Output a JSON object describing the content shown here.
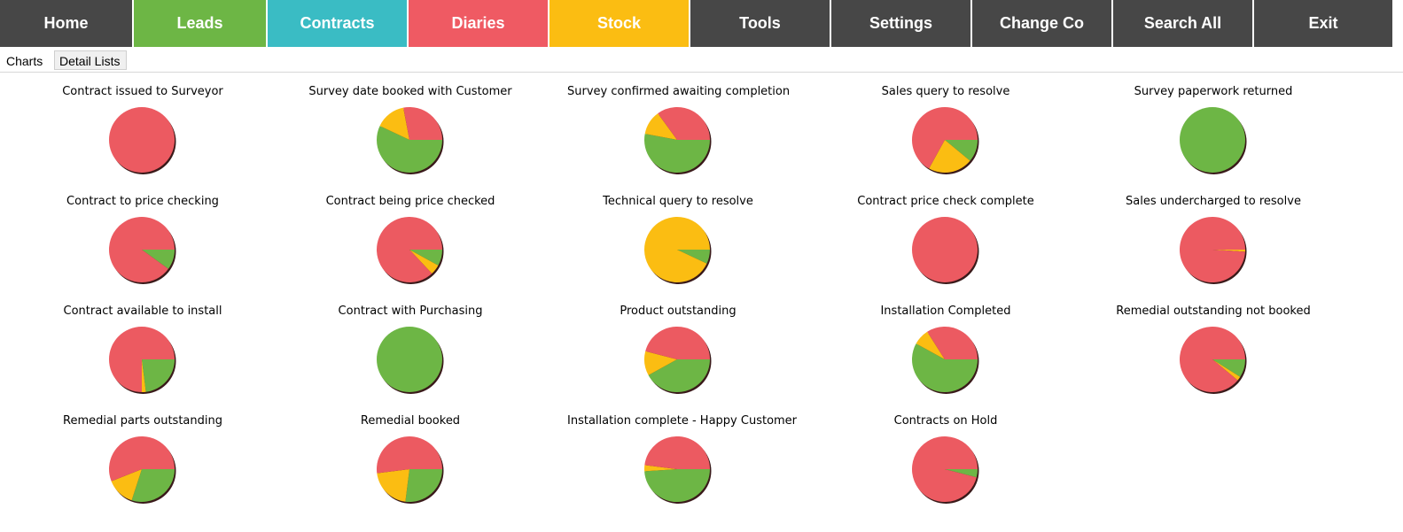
{
  "nav": [
    {
      "label": "Home",
      "color": "#474747"
    },
    {
      "label": "Leads",
      "color": "#6db645"
    },
    {
      "label": "Contracts",
      "color": "#3abcc4"
    },
    {
      "label": "Diaries",
      "color": "#ef5a63"
    },
    {
      "label": "Stock",
      "color": "#fbbd12"
    },
    {
      "label": "Tools",
      "color": "#474747"
    },
    {
      "label": "Settings",
      "color": "#474747"
    },
    {
      "label": "Change Co",
      "color": "#474747"
    },
    {
      "label": "Search All",
      "color": "#474747"
    },
    {
      "label": "Exit",
      "color": "#474747"
    }
  ],
  "tabs": {
    "charts": "Charts",
    "detail_lists": "Detail Lists"
  },
  "colors": {
    "green": "#6db645",
    "amber": "#fbbd12",
    "red": "#ec5a61",
    "shadow": "#3a1a1a"
  },
  "chart_data": [
    {
      "type": "pie",
      "title": "Contract issued to Surveyor",
      "slices": [
        {
          "color": "red",
          "value": 100
        }
      ]
    },
    {
      "type": "pie",
      "title": "Survey date booked with Customer",
      "slices": [
        {
          "color": "green",
          "value": 57
        },
        {
          "color": "amber",
          "value": 15
        },
        {
          "color": "red",
          "value": 28
        }
      ]
    },
    {
      "type": "pie",
      "title": "Survey confirmed awaiting completion",
      "slices": [
        {
          "color": "green",
          "value": 53
        },
        {
          "color": "amber",
          "value": 12
        },
        {
          "color": "red",
          "value": 35
        }
      ]
    },
    {
      "type": "pie",
      "title": "Sales query to resolve",
      "slices": [
        {
          "color": "green",
          "value": 11
        },
        {
          "color": "amber",
          "value": 22
        },
        {
          "color": "red",
          "value": 67
        }
      ]
    },
    {
      "type": "pie",
      "title": "Survey paperwork returned",
      "slices": [
        {
          "color": "green",
          "value": 100
        }
      ]
    },
    {
      "type": "pie",
      "title": "Contract to price checking",
      "slices": [
        {
          "color": "green",
          "value": 10
        },
        {
          "color": "red",
          "value": 90
        }
      ]
    },
    {
      "type": "pie",
      "title": "Contract being price checked",
      "slices": [
        {
          "color": "green",
          "value": 8
        },
        {
          "color": "amber",
          "value": 5
        },
        {
          "color": "red",
          "value": 87
        }
      ]
    },
    {
      "type": "pie",
      "title": "Technical query to resolve",
      "slices": [
        {
          "color": "green",
          "value": 7
        },
        {
          "color": "amber",
          "value": 93
        }
      ]
    },
    {
      "type": "pie",
      "title": "Contract price check complete",
      "slices": [
        {
          "color": "red",
          "value": 100
        }
      ]
    },
    {
      "type": "pie",
      "title": "Sales undercharged to resolve",
      "slices": [
        {
          "color": "amber",
          "value": 1
        },
        {
          "color": "red",
          "value": 99
        }
      ]
    },
    {
      "type": "pie",
      "title": "Contract available to install",
      "slices": [
        {
          "color": "green",
          "value": 23
        },
        {
          "color": "amber",
          "value": 2
        },
        {
          "color": "red",
          "value": 75
        }
      ]
    },
    {
      "type": "pie",
      "title": "Contract with Purchasing",
      "slices": [
        {
          "color": "green",
          "value": 100
        }
      ]
    },
    {
      "type": "pie",
      "title": "Product outstanding",
      "slices": [
        {
          "color": "green",
          "value": 42
        },
        {
          "color": "amber",
          "value": 12
        },
        {
          "color": "red",
          "value": 46
        }
      ]
    },
    {
      "type": "pie",
      "title": "Installation Completed",
      "slices": [
        {
          "color": "green",
          "value": 58
        },
        {
          "color": "amber",
          "value": 8
        },
        {
          "color": "red",
          "value": 34
        }
      ]
    },
    {
      "type": "pie",
      "title": "Remedial outstanding not booked",
      "slices": [
        {
          "color": "green",
          "value": 9
        },
        {
          "color": "amber",
          "value": 2
        },
        {
          "color": "red",
          "value": 89
        }
      ]
    },
    {
      "type": "pie",
      "title": "Remedial parts outstanding",
      "slices": [
        {
          "color": "green",
          "value": 30
        },
        {
          "color": "amber",
          "value": 14
        },
        {
          "color": "red",
          "value": 56
        }
      ]
    },
    {
      "type": "pie",
      "title": "Remedial booked",
      "slices": [
        {
          "color": "green",
          "value": 27
        },
        {
          "color": "amber",
          "value": 21
        },
        {
          "color": "red",
          "value": 52
        }
      ]
    },
    {
      "type": "pie",
      "title": "Installation complete - Happy Customer",
      "slices": [
        {
          "color": "green",
          "value": 49
        },
        {
          "color": "amber",
          "value": 3
        },
        {
          "color": "red",
          "value": 48
        }
      ]
    },
    {
      "type": "pie",
      "title": "Contracts on Hold",
      "slices": [
        {
          "color": "green",
          "value": 4
        },
        {
          "color": "red",
          "value": 96
        }
      ]
    }
  ]
}
